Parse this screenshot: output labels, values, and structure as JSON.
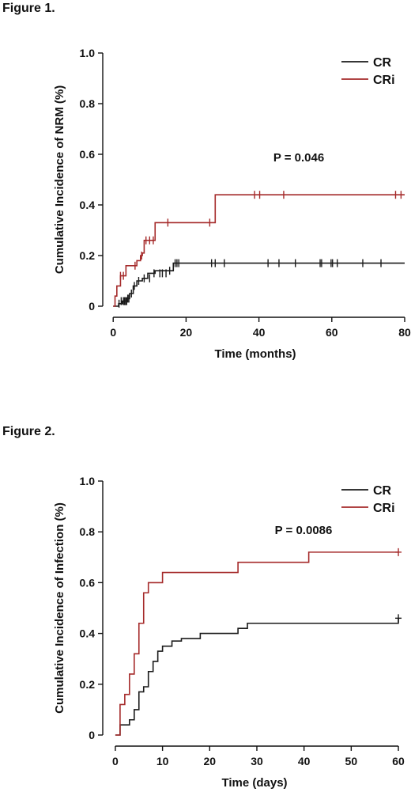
{
  "figures": [
    {
      "title": "Figure 1."
    },
    {
      "title": "Figure 2."
    }
  ],
  "colors": {
    "CR": "#1a1a1a",
    "CRi": "#a52a2a",
    "axis": "#111111"
  },
  "chart_data": [
    {
      "type": "line",
      "step": true,
      "title": "",
      "xlabel": "Time (months)",
      "ylabel": "Cumulative Incidence of NRM (%)",
      "xlim": [
        -2,
        80
      ],
      "ylim": [
        0,
        1.0
      ],
      "xticks": [
        0,
        20,
        40,
        60,
        80
      ],
      "xtick_labels": [
        "0",
        "20",
        "40",
        "60",
        "80"
      ],
      "yticks": [
        0,
        0.2,
        0.4,
        0.6,
        0.8,
        1.0
      ],
      "ytick_labels": [
        "0",
        "0.2",
        "0.4",
        "0.6",
        "0.8",
        "1.0"
      ],
      "annotation": "P = 0.046",
      "legend_position": "top-right",
      "series": [
        {
          "name": "CR",
          "color": "#1a1a1a",
          "x": [
            0,
            1.5,
            2.5,
            3.5,
            4.5,
            5.5,
            6.5,
            8.0,
            9.5,
            11.5,
            16.5,
            80
          ],
          "y": [
            0,
            0.01,
            0.02,
            0.03,
            0.05,
            0.08,
            0.1,
            0.11,
            0.13,
            0.14,
            0.17,
            0.17
          ],
          "censor_x": [
            1.6,
            2.2,
            2.8,
            3.1,
            3.4,
            3.7,
            4.0,
            4.3,
            5.0,
            5.8,
            7.0,
            8.5,
            10,
            11.2,
            12.8,
            13.5,
            14.5,
            15.5,
            17.0,
            17.5,
            18.0,
            27.0,
            28.0,
            30.5,
            42.5,
            45.5,
            50.0,
            56.8,
            57.2,
            59.8,
            60.2,
            61.5,
            68.5,
            73.5
          ],
          "censor_y": [
            0.01,
            0.02,
            0.02,
            0.02,
            0.02,
            0.02,
            0.03,
            0.03,
            0.05,
            0.08,
            0.1,
            0.11,
            0.11,
            0.13,
            0.13,
            0.13,
            0.13,
            0.14,
            0.17,
            0.17,
            0.17,
            0.17,
            0.17,
            0.17,
            0.17,
            0.17,
            0.17,
            0.17,
            0.17,
            0.17,
            0.17,
            0.17,
            0.17,
            0.17
          ]
        },
        {
          "name": "CRi",
          "color": "#a52a2a",
          "x": [
            0,
            0.5,
            1.0,
            2.0,
            3.5,
            5.5,
            6.5,
            7.5,
            8.0,
            8.5,
            11.5,
            28.0,
            80
          ],
          "y": [
            0,
            0.04,
            0.08,
            0.12,
            0.16,
            0.16,
            0.18,
            0.2,
            0.21,
            0.26,
            0.33,
            0.44,
            0.44
          ],
          "censor_x": [
            2.0,
            2.8,
            6.0,
            7.8,
            9.0,
            10.0,
            11.0,
            15.0,
            26.5,
            38.8,
            40.2,
            46.8,
            77.5,
            79.0
          ],
          "censor_y": [
            0.12,
            0.12,
            0.16,
            0.2,
            0.26,
            0.26,
            0.26,
            0.33,
            0.33,
            0.44,
            0.44,
            0.44,
            0.44,
            0.44
          ]
        }
      ]
    },
    {
      "type": "line",
      "step": true,
      "title": "",
      "xlabel": "Time (days)",
      "ylabel": "Cumulative Incidence of Infection (%)",
      "xlim": [
        -2,
        61
      ],
      "ylim": [
        0,
        1.0
      ],
      "xticks": [
        0,
        10,
        20,
        30,
        40,
        50,
        60
      ],
      "xtick_labels": [
        "0",
        "10",
        "20",
        "30",
        "40",
        "50",
        "60"
      ],
      "yticks": [
        0,
        0.2,
        0.4,
        0.6,
        0.8,
        1.0
      ],
      "ytick_labels": [
        "0",
        "0.2",
        "0.4",
        "0.6",
        "0.8",
        "1.0"
      ],
      "annotation": "P = 0.0086",
      "legend_position": "top-right",
      "series": [
        {
          "name": "CR",
          "color": "#1a1a1a",
          "x": [
            0,
            1,
            2,
            3,
            4,
            5,
            6,
            7,
            8,
            9,
            10,
            12,
            14,
            18,
            26,
            28,
            60
          ],
          "y": [
            0,
            0.04,
            0.04,
            0.06,
            0.1,
            0.17,
            0.19,
            0.25,
            0.29,
            0.33,
            0.35,
            0.37,
            0.38,
            0.4,
            0.42,
            0.44,
            0.46
          ],
          "censor_x": [
            60
          ],
          "censor_y": [
            0.46
          ]
        },
        {
          "name": "CRi",
          "color": "#a52a2a",
          "x": [
            0,
            1,
            2,
            3,
            4,
            5,
            6,
            7,
            10,
            26,
            41,
            60
          ],
          "y": [
            0,
            0.12,
            0.16,
            0.24,
            0.32,
            0.44,
            0.56,
            0.6,
            0.64,
            0.68,
            0.72,
            0.72
          ],
          "censor_x": [
            60
          ],
          "censor_y": [
            0.72
          ]
        }
      ]
    }
  ]
}
